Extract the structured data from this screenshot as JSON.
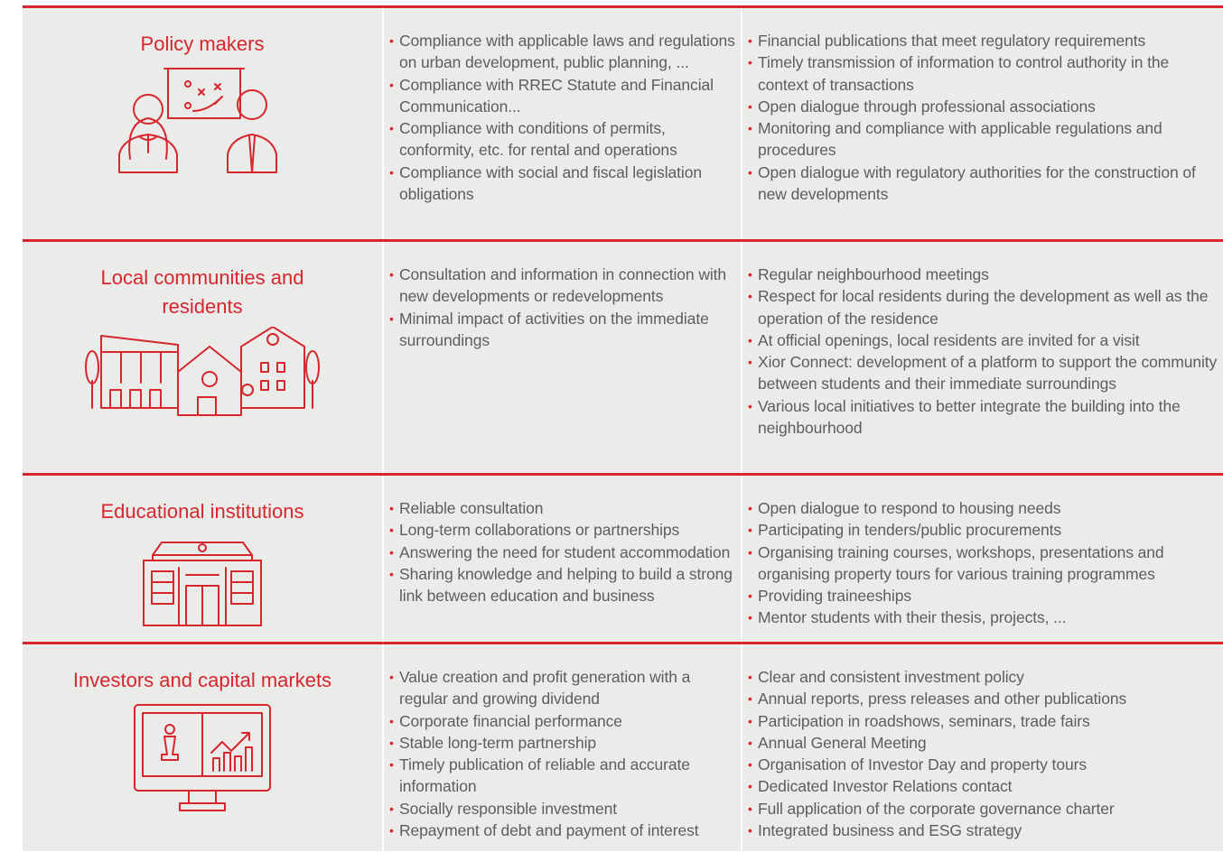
{
  "rows": [
    {
      "stakeholder": "Policy makers",
      "expectations": [
        "Compliance with applicable laws and regulations on urban development, public planning, ...",
        "Compliance with RREC Statute and Financial Communication...",
        "Compliance with conditions of permits, conformity, etc. for rental and operations",
        "Compliance with social and fiscal legislation obligations"
      ],
      "engagement": [
        "Financial publications that meet regulatory requirements",
        "Timely transmission of information to control authority in the context of transactions",
        "Open dialogue through professional associations",
        "Monitoring and compliance with applicable regulations and procedures",
        "Open dialogue with regulatory authorities for the construction of new developments"
      ]
    },
    {
      "stakeholder": "Local communities and residents",
      "expectations": [
        "Consultation and information in connection with new developments or redevelopments",
        "Minimal impact of activities on the immediate surroundings"
      ],
      "engagement": [
        "Regular neighbourhood meetings",
        "Respect for local residents during the development as well as the operation of the residence",
        "At official openings, local residents are invited for a visit",
        "Xior Connect: development of a platform to support the community between students and their immediate surroundings",
        "Various local initiatives to better integrate the building into the neighbourhood"
      ]
    },
    {
      "stakeholder": "Educational institutions",
      "expectations": [
        "Reliable consultation",
        "Long-term collaborations or partnerships",
        "Answering the need for student accommodation",
        "Sharing knowledge and helping to build a strong link between education and business"
      ],
      "engagement": [
        "Open dialogue to respond to housing needs",
        "Participating in tenders/public procurements",
        "Organising training courses, workshops, presentations and organising property tours for various training programmes",
        "Providing traineeships",
        "Mentor students with their thesis, projects, ..."
      ]
    },
    {
      "stakeholder": "Investors and capital markets",
      "expectations": [
        "Value creation and profit generation with a regular and growing dividend",
        "Corporate financial performance",
        "Stable long-term partnership",
        "Timely publication of reliable and accurate information",
        "Socially responsible investment",
        "Repayment of debt and payment of interest"
      ],
      "engagement": [
        "Clear and consistent investment policy",
        "Annual reports, press releases and other publications",
        "Participation in roadshows, seminars, trade fairs",
        "Annual General Meeting",
        "Organisation of Investor Day and property tours",
        "Dedicated Investor Relations contact",
        "Full application of the corporate governance charter",
        "Integrated business and ESG strategy"
      ]
    }
  ]
}
